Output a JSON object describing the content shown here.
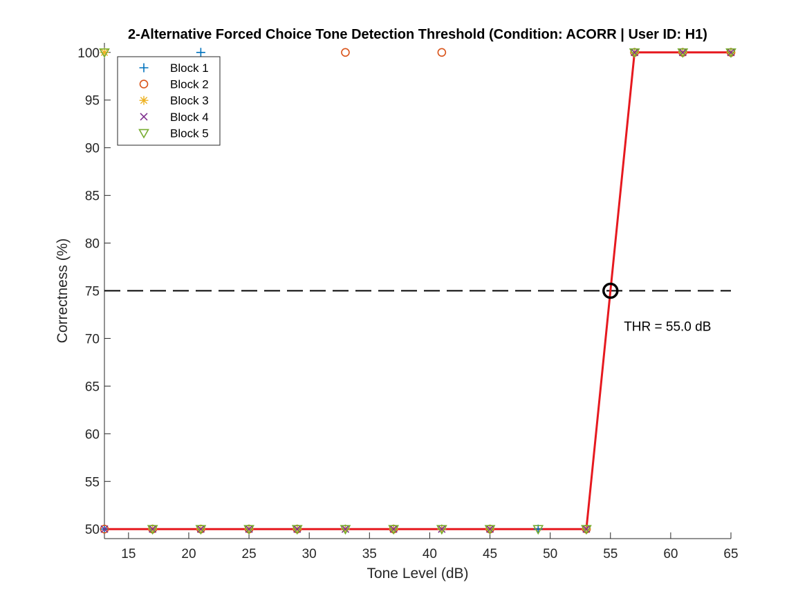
{
  "chart_data": {
    "type": "scatter",
    "title": "2-Alternative Forced Choice Tone Detection Threshold (Condition: ACORR | User ID: H1)",
    "xlabel": "Tone Level (dB)",
    "ylabel": "Correctness (%)",
    "xlim": [
      13,
      65
    ],
    "ylim": [
      49,
      101
    ],
    "xticks": [
      15,
      20,
      25,
      30,
      35,
      40,
      45,
      50,
      55,
      60,
      65
    ],
    "yticks": [
      50,
      55,
      60,
      65,
      70,
      75,
      80,
      85,
      90,
      95,
      100
    ],
    "grid": false,
    "legend_position": "top-left",
    "series": [
      {
        "name": "Block 1",
        "marker": "plus",
        "color": "#0072BD",
        "points": [
          [
            13,
            50
          ],
          [
            17,
            50
          ],
          [
            21,
            100
          ],
          [
            25,
            50
          ],
          [
            29,
            50
          ],
          [
            33,
            50
          ],
          [
            37,
            50
          ],
          [
            41,
            50
          ],
          [
            45,
            50
          ],
          [
            49,
            50
          ],
          [
            53,
            50
          ],
          [
            57,
            100
          ],
          [
            61,
            100
          ],
          [
            65,
            100
          ]
        ]
      },
      {
        "name": "Block 2",
        "marker": "circle",
        "color": "#D95319",
        "points": [
          [
            13,
            50
          ],
          [
            17,
            50
          ],
          [
            21,
            50
          ],
          [
            25,
            50
          ],
          [
            29,
            50
          ],
          [
            33,
            100
          ],
          [
            37,
            50
          ],
          [
            41,
            100
          ],
          [
            45,
            50
          ],
          [
            53,
            50
          ],
          [
            57,
            100
          ],
          [
            61,
            100
          ],
          [
            65,
            100
          ]
        ]
      },
      {
        "name": "Block 3",
        "marker": "asterisk",
        "color": "#EDB120",
        "points": [
          [
            13,
            100
          ],
          [
            17,
            50
          ],
          [
            21,
            50
          ],
          [
            25,
            50
          ],
          [
            29,
            50
          ],
          [
            33,
            50
          ],
          [
            37,
            50
          ],
          [
            41,
            50
          ],
          [
            45,
            50
          ],
          [
            53,
            50
          ],
          [
            57,
            100
          ],
          [
            61,
            100
          ],
          [
            65,
            100
          ]
        ]
      },
      {
        "name": "Block 4",
        "marker": "x",
        "color": "#7E2F8E",
        "points": [
          [
            13,
            50
          ],
          [
            17,
            50
          ],
          [
            21,
            50
          ],
          [
            25,
            50
          ],
          [
            29,
            50
          ],
          [
            33,
            50
          ],
          [
            37,
            50
          ],
          [
            41,
            50
          ],
          [
            45,
            50
          ],
          [
            53,
            50
          ],
          [
            57,
            100
          ],
          [
            61,
            100
          ],
          [
            65,
            100
          ]
        ]
      },
      {
        "name": "Block 5",
        "marker": "triangle-down",
        "color": "#77AC30",
        "points": [
          [
            13,
            100
          ],
          [
            17,
            50
          ],
          [
            21,
            50
          ],
          [
            25,
            50
          ],
          [
            29,
            50
          ],
          [
            33,
            50
          ],
          [
            37,
            50
          ],
          [
            41,
            50
          ],
          [
            45,
            50
          ],
          [
            49,
            50
          ],
          [
            53,
            50
          ],
          [
            57,
            100
          ],
          [
            61,
            100
          ],
          [
            65,
            100
          ]
        ]
      }
    ],
    "fit_line": {
      "color": "#E6191F",
      "points": [
        [
          13,
          50
        ],
        [
          53,
          50
        ],
        [
          57,
          100
        ],
        [
          65,
          100
        ]
      ]
    },
    "threshold_line": {
      "y": 75,
      "color": "#000000",
      "style": "dashed"
    },
    "threshold_point": {
      "x": 55,
      "y": 75
    },
    "annotation": {
      "text": "THR = 55.0 dB",
      "x": 56,
      "y": 71.3
    }
  }
}
